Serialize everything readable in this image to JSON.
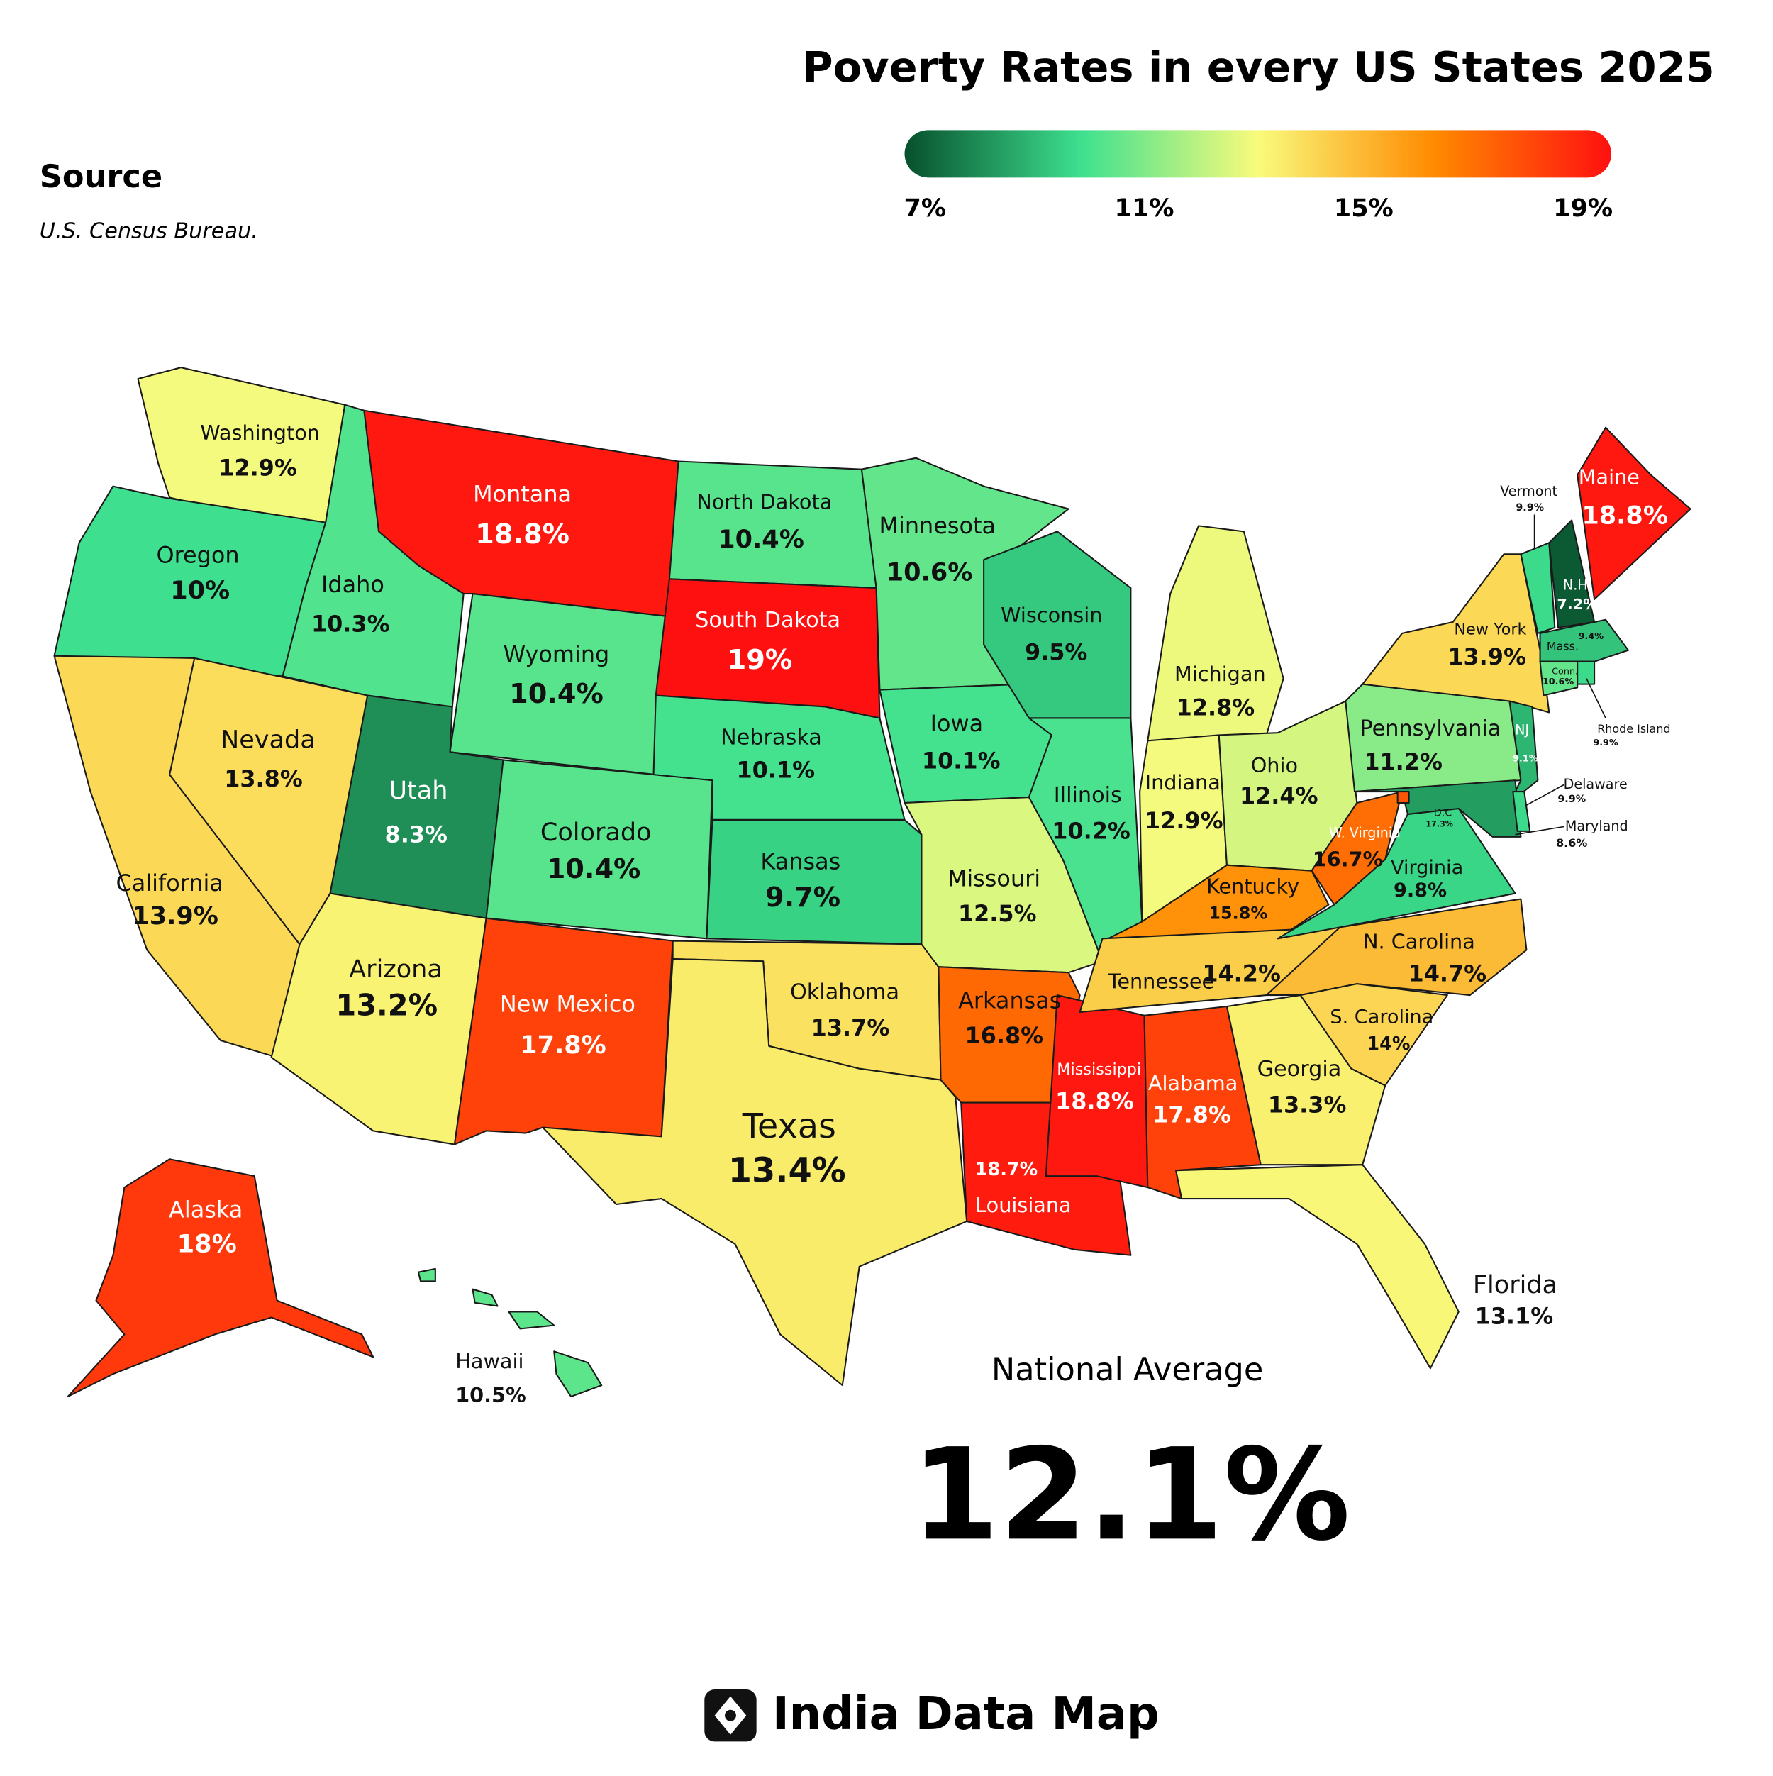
{
  "title": "Poverty Rates in every US States 2025",
  "source_heading": "Source",
  "source": "U.S. Census Bureau.",
  "legend": {
    "colors": [
      "#07502d",
      "#3ee08f",
      "#f9fb7c",
      "#ff8a00",
      "#ff1010"
    ],
    "ticks": [
      {
        "value": 7,
        "label": "7%"
      },
      {
        "value": 11,
        "label": "11%"
      },
      {
        "value": 15,
        "label": "15%"
      },
      {
        "value": 19,
        "label": "19%"
      }
    ]
  },
  "states": [
    {
      "name": "Washington",
      "value": 12.9,
      "value_label": "12.9%"
    },
    {
      "name": "Oregon",
      "value": 10,
      "value_label": "10%"
    },
    {
      "name": "California",
      "value": 13.9,
      "value_label": "13.9%"
    },
    {
      "name": "Nevada",
      "value": 13.8,
      "value_label": "13.8%"
    },
    {
      "name": "Idaho",
      "value": 10.3,
      "value_label": "10.3%"
    },
    {
      "name": "Montana",
      "value": 18.8,
      "value_label": "18.8%"
    },
    {
      "name": "Wyoming",
      "value": 10.4,
      "value_label": "10.4%"
    },
    {
      "name": "Utah",
      "value": 8.3,
      "value_label": "8.3%"
    },
    {
      "name": "Arizona",
      "value": 13.2,
      "value_label": "13.2%"
    },
    {
      "name": "Colorado",
      "value": 10.4,
      "value_label": "10.4%"
    },
    {
      "name": "New Mexico",
      "value": 17.8,
      "value_label": "17.8%"
    },
    {
      "name": "North Dakota",
      "value": 10.4,
      "value_label": "10.4%"
    },
    {
      "name": "South Dakota",
      "value": 19,
      "value_label": "19%"
    },
    {
      "name": "Nebraska",
      "value": 10.1,
      "value_label": "10.1%"
    },
    {
      "name": "Kansas",
      "value": 9.7,
      "value_label": "9.7%"
    },
    {
      "name": "Oklahoma",
      "value": 13.7,
      "value_label": "13.7%"
    },
    {
      "name": "Texas",
      "value": 13.4,
      "value_label": "13.4%"
    },
    {
      "name": "Minnesota",
      "value": 10.6,
      "value_label": "10.6%"
    },
    {
      "name": "Iowa",
      "value": 10.1,
      "value_label": "10.1%"
    },
    {
      "name": "Missouri",
      "value": 12.5,
      "value_label": "12.5%"
    },
    {
      "name": "Arkansas",
      "value": 16.8,
      "value_label": "16.8%"
    },
    {
      "name": "Louisiana",
      "value": 18.7,
      "value_label": "18.7%"
    },
    {
      "name": "Mississippi",
      "value": 18.8,
      "value_label": "18.8%"
    },
    {
      "name": "Alabama",
      "value": 17.8,
      "value_label": "17.8%"
    },
    {
      "name": "Wisconsin",
      "value": 9.5,
      "value_label": "9.5%"
    },
    {
      "name": "Illinois",
      "value": 10.2,
      "value_label": "10.2%"
    },
    {
      "name": "Michigan",
      "value": 12.8,
      "value_label": "12.8%"
    },
    {
      "name": "Indiana",
      "value": 12.9,
      "value_label": "12.9%"
    },
    {
      "name": "Ohio",
      "value": 12.4,
      "value_label": "12.4%"
    },
    {
      "name": "Kentucky",
      "value": 15.8,
      "value_label": "15.8%"
    },
    {
      "name": "Tennessee",
      "value": 14.2,
      "value_label": "14.2%"
    },
    {
      "name": "W. Virginia",
      "value": 16.7,
      "value_label": "16.7%"
    },
    {
      "name": "Virginia",
      "value": 9.8,
      "value_label": "9.8%"
    },
    {
      "name": "N. Carolina",
      "value": 14.7,
      "value_label": "14.7%"
    },
    {
      "name": "S. Carolina",
      "value": 14,
      "value_label": "14%"
    },
    {
      "name": "Georgia",
      "value": 13.3,
      "value_label": "13.3%"
    },
    {
      "name": "Florida",
      "value": 13.1,
      "value_label": "13.1%"
    },
    {
      "name": "Pennsylvania",
      "value": 11.2,
      "value_label": "11.2%"
    },
    {
      "name": "New York",
      "value": 13.9,
      "value_label": "13.9%"
    },
    {
      "name": "NJ",
      "value": 9.1,
      "value_label": "9.1%"
    },
    {
      "name": "Maryland",
      "value": 8.6,
      "value_label": "8.6%"
    },
    {
      "name": "Delaware",
      "value": 9.9,
      "value_label": "9.9%"
    },
    {
      "name": "D.C",
      "value": 17.3,
      "value_label": "17.3%"
    },
    {
      "name": "Vermont",
      "value": 9.9,
      "value_label": "9.9%"
    },
    {
      "name": "N.H.",
      "value": 7.2,
      "value_label": "7.2%"
    },
    {
      "name": "Maine",
      "value": 18.8,
      "value_label": "18.8%"
    },
    {
      "name": "Mass.",
      "value": 9.4,
      "value_label": "9.4%"
    },
    {
      "name": "Conn.",
      "value": 10.6,
      "value_label": "10.6%"
    },
    {
      "name": "Rhode Island",
      "value": 9.9,
      "value_label": "9.9%"
    },
    {
      "name": "Alaska",
      "value": 18,
      "value_label": "18%"
    },
    {
      "name": "Hawaii",
      "value": 10.5,
      "value_label": "10.5%"
    }
  ],
  "national_average": {
    "label": "National Average",
    "value": 12.1,
    "value_label": "12.1%"
  },
  "brand": "India Data Map"
}
